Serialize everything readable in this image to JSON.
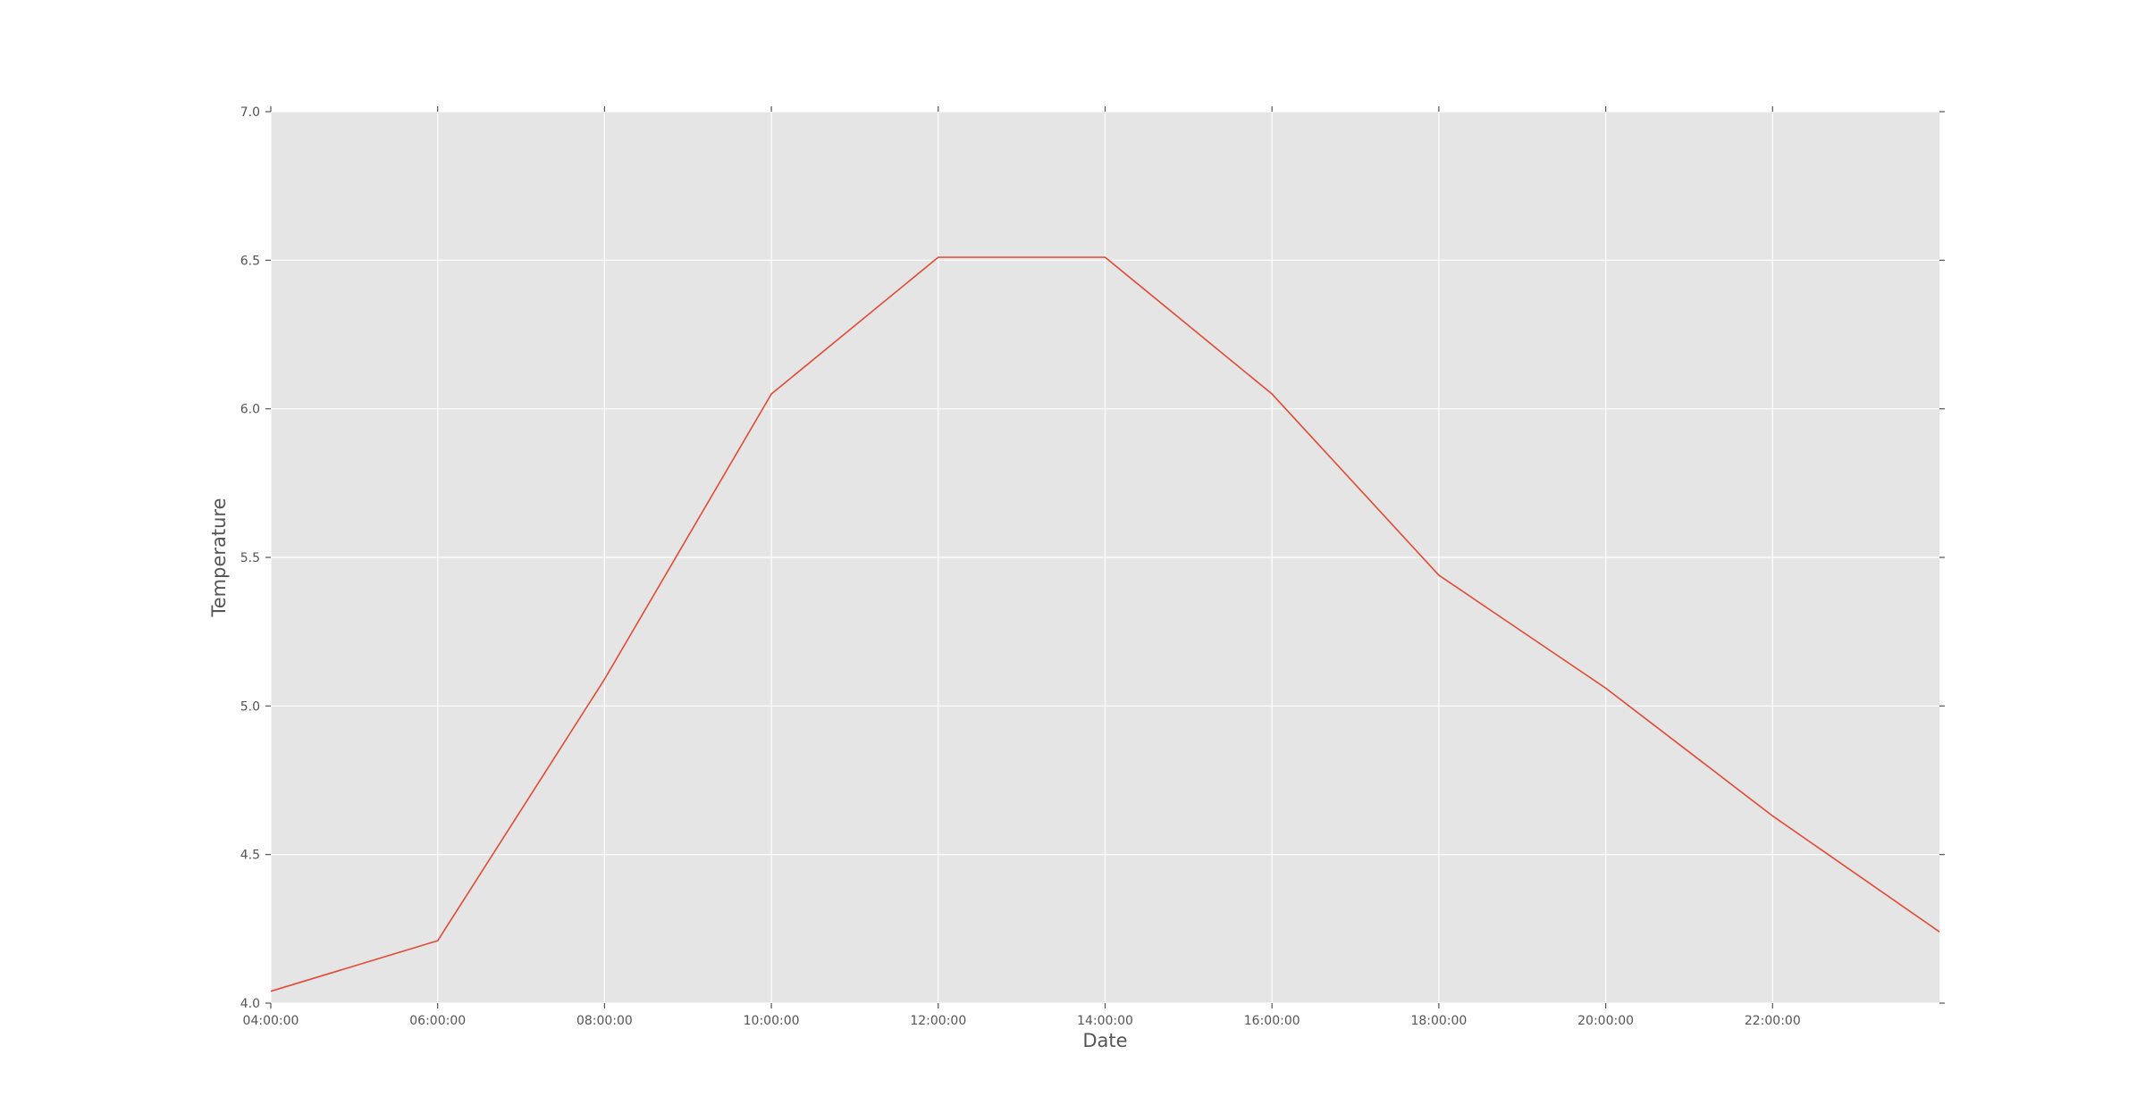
{
  "chart_data": {
    "type": "line",
    "title": "",
    "xlabel": "Date",
    "ylabel": "Temperature",
    "x_tick_labels": [
      "04:00:00",
      "06:00:00",
      "08:00:00",
      "10:00:00",
      "12:00:00",
      "14:00:00",
      "16:00:00",
      "18:00:00",
      "20:00:00",
      "22:00:00"
    ],
    "x_tick_hours": [
      4,
      6,
      8,
      10,
      12,
      14,
      16,
      18,
      20,
      22
    ],
    "y_tick_labels": [
      "4.0",
      "4.5",
      "5.0",
      "5.5",
      "6.0",
      "6.5",
      "7.0"
    ],
    "y_ticks": [
      4.0,
      4.5,
      5.0,
      5.5,
      6.0,
      6.5,
      7.0
    ],
    "xlim_hours": [
      4,
      24
    ],
    "ylim": [
      4.0,
      7.0
    ],
    "grid": true,
    "series": [
      {
        "name": "Temperature",
        "color": "#e24a33",
        "x_hours": [
          4,
          6,
          8,
          10,
          12,
          14,
          16,
          18,
          20,
          22,
          24
        ],
        "values": [
          4.04,
          4.21,
          5.09,
          6.05,
          6.51,
          6.51,
          6.05,
          5.44,
          5.06,
          4.63,
          4.24
        ]
      }
    ]
  },
  "colors": {
    "plot_background": "#e5e5e5",
    "grid": "#ffffff",
    "axis_text": "#555555",
    "tick": "#555555"
  }
}
